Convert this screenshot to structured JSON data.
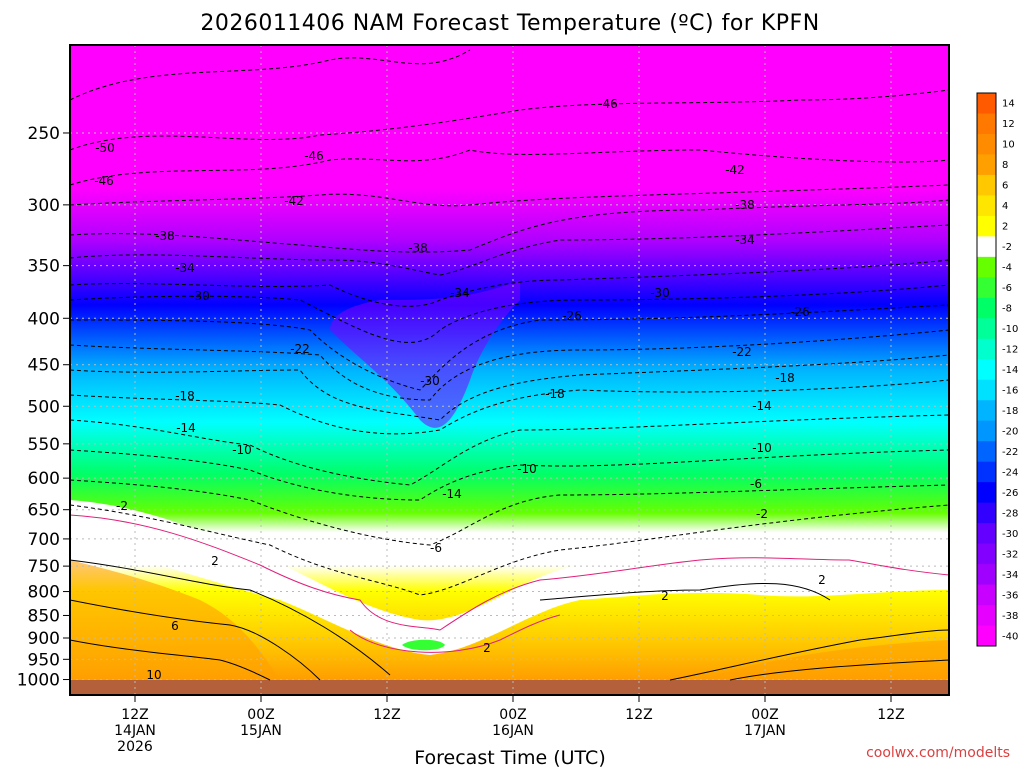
{
  "chart_data": {
    "type": "heatmap",
    "title": "2026011406 NAM Forecast Temperature (ºC) for KPFN",
    "xlabel": "Forecast Time (UTC)",
    "ylabel": "",
    "credit": "coolwx.com/modelts",
    "y_axis": {
      "scale": "pressure",
      "ticks": [
        "250",
        "300",
        "350",
        "400",
        "450",
        "500",
        "550",
        "600",
        "650",
        "700",
        "750",
        "800",
        "850",
        "900",
        "950",
        "1000"
      ]
    },
    "x_axis": {
      "ticks": [
        {
          "lines": [
            "12Z",
            "14JAN",
            "2026"
          ]
        },
        {
          "lines": [
            "00Z",
            "15JAN"
          ]
        },
        {
          "lines": [
            "12Z"
          ]
        },
        {
          "lines": [
            "00Z",
            "16JAN"
          ]
        },
        {
          "lines": [
            "12Z"
          ]
        },
        {
          "lines": [
            "00Z",
            "17JAN"
          ]
        },
        {
          "lines": [
            "12Z"
          ]
        }
      ]
    },
    "colorbar": {
      "labels": [
        "14",
        "12",
        "10",
        "8",
        "6",
        "4",
        "2",
        "-2",
        "-4",
        "-6",
        "-8",
        "-10",
        "-12",
        "-14",
        "-16",
        "-18",
        "-20",
        "-22",
        "-24",
        "-26",
        "-28",
        "-30",
        "-32",
        "-34",
        "-36",
        "-38",
        "-40"
      ],
      "colors": [
        "#ff5a00",
        "#ff7800",
        "#ff8c00",
        "#ffa000",
        "#ffc800",
        "#ffe600",
        "#ffff00",
        "#ffffff",
        "#66ff00",
        "#33ff33",
        "#00ff66",
        "#00ff99",
        "#00ffcc",
        "#00ffff",
        "#00e0ff",
        "#00b4ff",
        "#0096ff",
        "#0064ff",
        "#0032ff",
        "#0000ff",
        "#3200ff",
        "#6400ff",
        "#8200ff",
        "#a000ff",
        "#c800ff",
        "#e600ff",
        "#ff00ff"
      ]
    },
    "contour_labels": [
      "-50",
      "-46",
      "-46",
      "-46",
      "-42",
      "-42",
      "-38",
      "-38",
      "-38",
      "-34",
      "-34",
      "-34",
      "-30",
      "-30",
      "-30",
      "-26",
      "-26",
      "-22",
      "-22",
      "-18",
      "-18",
      "-18",
      "-14",
      "-14",
      "-14",
      "-10",
      "-10",
      "-10",
      "-6",
      "-6",
      "-2",
      "-2",
      "2",
      "2",
      "2",
      "2",
      "6",
      "10"
    ]
  }
}
